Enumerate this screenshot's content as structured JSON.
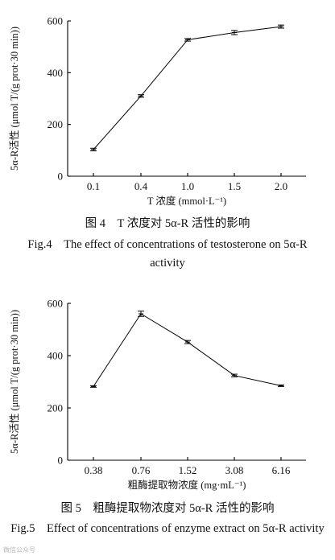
{
  "chart_data": [
    {
      "type": "line",
      "categories": [
        "0.1",
        "0.4",
        "1.0",
        "1.5",
        "2.0"
      ],
      "values": [
        103,
        310,
        527,
        555,
        578
      ],
      "errors": [
        5,
        5,
        5,
        8,
        6
      ],
      "ylabel": "5α-R活性 (μmol T/(g prot·30 min))",
      "xlabel": "T 浓度 (mmol·L⁻¹)",
      "yticks": [
        "0",
        "200",
        "400",
        "600"
      ],
      "ylim": [
        0,
        600
      ],
      "grid": false,
      "caption_cn": "图 4　T 浓度对 5α-R 活性的影响",
      "caption_en": "Fig.4　The effect of concentrations of testosterone on 5α-R activity"
    },
    {
      "type": "line",
      "categories": [
        "0.38",
        "0.76",
        "1.52",
        "3.08",
        "6.16"
      ],
      "values": [
        282,
        560,
        452,
        324,
        285
      ],
      "errors": [
        3,
        10,
        6,
        5,
        3
      ],
      "ylabel": "5α-R活性 (μmol T/(g prot·30 min))",
      "xlabel": "粗酶提取物浓度 (mg·mL⁻¹)",
      "yticks": [
        "0",
        "200",
        "400",
        "600"
      ],
      "ylim": [
        0,
        600
      ],
      "grid": false,
      "caption_cn": "图 5　粗酶提取物浓度对 5α-R 活性的影响",
      "caption_en": "Fig.5　Effect of concentrations of enzyme extract on 5α-R activity"
    }
  ],
  "watermark": "微信公众号"
}
